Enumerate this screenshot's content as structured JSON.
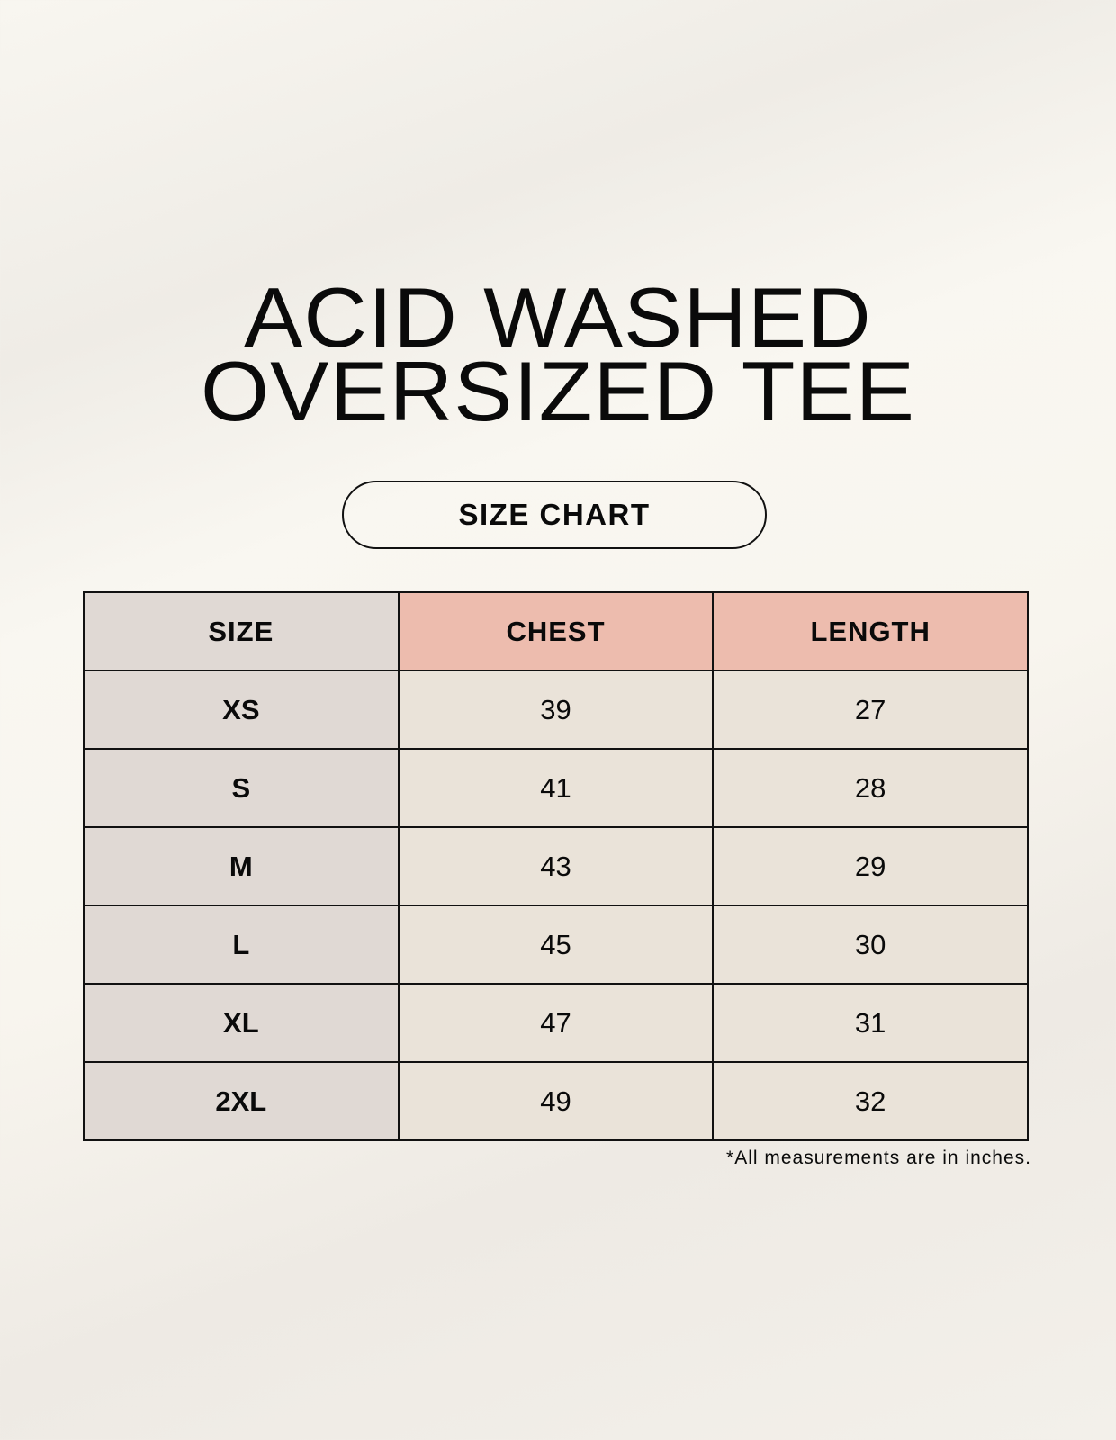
{
  "title": {
    "line1": "ACID WASHED",
    "line2": "OVERSIZED TEE"
  },
  "badge": "SIZE CHART",
  "table": {
    "headers": [
      "SIZE",
      "CHEST",
      "LENGTH"
    ],
    "rows": [
      [
        "XS",
        "39",
        "27"
      ],
      [
        "S",
        "41",
        "28"
      ],
      [
        "M",
        "43",
        "29"
      ],
      [
        "L",
        "45",
        "30"
      ],
      [
        "XL",
        "47",
        "31"
      ],
      [
        "2XL",
        "49",
        "32"
      ]
    ]
  },
  "note": "*All measurements are in inches.",
  "colors": {
    "size_column": "#e0d9d4",
    "header_accent": "#edbcae",
    "cell": "#eae3d9"
  }
}
